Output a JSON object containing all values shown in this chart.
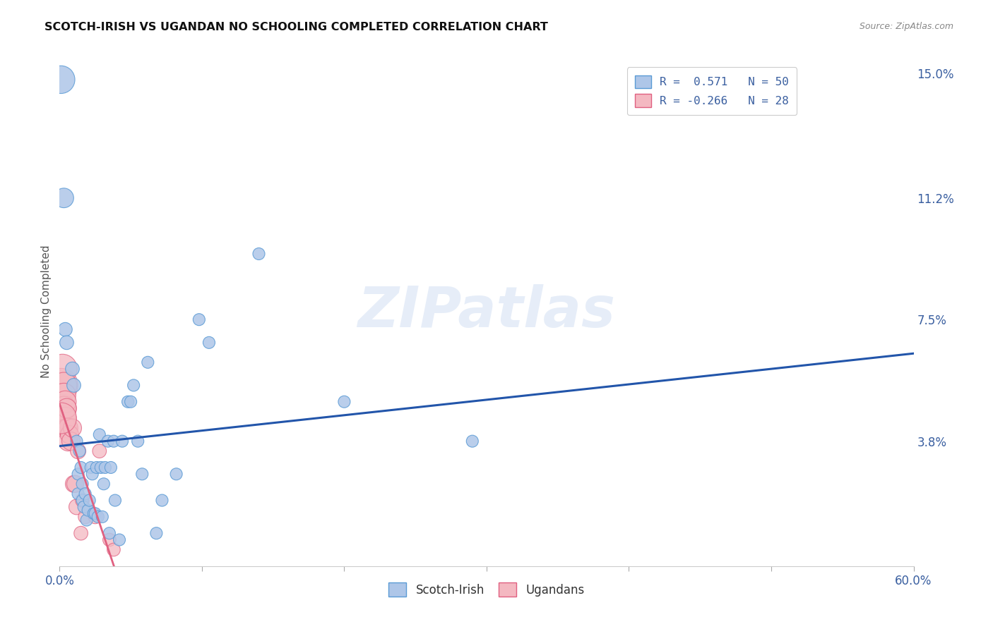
{
  "title": "SCOTCH-IRISH VS UGANDAN NO SCHOOLING COMPLETED CORRELATION CHART",
  "source": "Source: ZipAtlas.com",
  "ylabel": "No Schooling Completed",
  "xlim": [
    0.0,
    0.6
  ],
  "ylim": [
    0.0,
    0.155
  ],
  "xtick_positions": [
    0.0,
    0.1,
    0.2,
    0.3,
    0.4,
    0.5,
    0.6
  ],
  "xticklabels": [
    "0.0%",
    "",
    "",
    "",
    "",
    "",
    "60.0%"
  ],
  "ytick_positions": [
    0.0,
    0.038,
    0.075,
    0.112,
    0.15
  ],
  "ytick_labels": [
    "",
    "3.8%",
    "7.5%",
    "11.2%",
    "15.0%"
  ],
  "watermark": "ZIPatlas",
  "legend_entries": [
    {
      "label": "R =  0.571   N = 50",
      "color": "#aec6e8"
    },
    {
      "label": "R = -0.266   N = 28",
      "color": "#f4b8c1"
    }
  ],
  "blue_line_color": "#2255aa",
  "pink_line_color": "#e06080",
  "blue_scatter_color": "#aec6e8",
  "blue_edge_color": "#5b9bd5",
  "pink_scatter_color": "#f4b8c1",
  "pink_edge_color": "#e06080",
  "blue_R": 0.571,
  "blue_N": 50,
  "pink_R": -0.266,
  "pink_N": 28,
  "scotch_irish_points": [
    [
      0.001,
      0.148
    ],
    [
      0.003,
      0.112
    ],
    [
      0.004,
      0.072
    ],
    [
      0.005,
      0.068
    ],
    [
      0.009,
      0.06
    ],
    [
      0.01,
      0.055
    ],
    [
      0.012,
      0.038
    ],
    [
      0.013,
      0.028
    ],
    [
      0.013,
      0.022
    ],
    [
      0.014,
      0.035
    ],
    [
      0.015,
      0.03
    ],
    [
      0.016,
      0.025
    ],
    [
      0.016,
      0.02
    ],
    [
      0.017,
      0.018
    ],
    [
      0.018,
      0.022
    ],
    [
      0.019,
      0.014
    ],
    [
      0.02,
      0.017
    ],
    [
      0.021,
      0.02
    ],
    [
      0.022,
      0.03
    ],
    [
      0.023,
      0.028
    ],
    [
      0.024,
      0.016
    ],
    [
      0.025,
      0.016
    ],
    [
      0.026,
      0.03
    ],
    [
      0.027,
      0.015
    ],
    [
      0.028,
      0.04
    ],
    [
      0.029,
      0.03
    ],
    [
      0.03,
      0.015
    ],
    [
      0.031,
      0.025
    ],
    [
      0.032,
      0.03
    ],
    [
      0.034,
      0.038
    ],
    [
      0.035,
      0.01
    ],
    [
      0.036,
      0.03
    ],
    [
      0.038,
      0.038
    ],
    [
      0.039,
      0.02
    ],
    [
      0.042,
      0.008
    ],
    [
      0.044,
      0.038
    ],
    [
      0.048,
      0.05
    ],
    [
      0.05,
      0.05
    ],
    [
      0.052,
      0.055
    ],
    [
      0.055,
      0.038
    ],
    [
      0.058,
      0.028
    ],
    [
      0.062,
      0.062
    ],
    [
      0.068,
      0.01
    ],
    [
      0.072,
      0.02
    ],
    [
      0.082,
      0.028
    ],
    [
      0.098,
      0.075
    ],
    [
      0.105,
      0.068
    ],
    [
      0.14,
      0.095
    ],
    [
      0.2,
      0.05
    ],
    [
      0.29,
      0.038
    ]
  ],
  "ugandan_points": [
    [
      0.001,
      0.055
    ],
    [
      0.002,
      0.06
    ],
    [
      0.002,
      0.048
    ],
    [
      0.002,
      0.045
    ],
    [
      0.003,
      0.055
    ],
    [
      0.003,
      0.052
    ],
    [
      0.003,
      0.048
    ],
    [
      0.004,
      0.05
    ],
    [
      0.004,
      0.045
    ],
    [
      0.005,
      0.048
    ],
    [
      0.005,
      0.042
    ],
    [
      0.006,
      0.042
    ],
    [
      0.006,
      0.038
    ],
    [
      0.007,
      0.04
    ],
    [
      0.008,
      0.038
    ],
    [
      0.009,
      0.042
    ],
    [
      0.01,
      0.025
    ],
    [
      0.011,
      0.025
    ],
    [
      0.012,
      0.018
    ],
    [
      0.013,
      0.035
    ],
    [
      0.015,
      0.01
    ],
    [
      0.016,
      0.02
    ],
    [
      0.018,
      0.015
    ],
    [
      0.025,
      0.015
    ],
    [
      0.028,
      0.035
    ],
    [
      0.035,
      0.008
    ],
    [
      0.038,
      0.005
    ],
    [
      0.001,
      0.045
    ]
  ],
  "scotch_irish_sizes": [
    800,
    400,
    200,
    200,
    200,
    200,
    150,
    150,
    150,
    150,
    150,
    150,
    150,
    150,
    150,
    150,
    150,
    150,
    150,
    150,
    150,
    150,
    150,
    150,
    150,
    150,
    150,
    150,
    150,
    150,
    150,
    150,
    150,
    150,
    150,
    150,
    150,
    150,
    150,
    150,
    150,
    150,
    150,
    150,
    150,
    150,
    150,
    150,
    150,
    150
  ],
  "ugandan_sizes": [
    1200,
    900,
    800,
    700,
    700,
    600,
    600,
    500,
    500,
    400,
    400,
    400,
    400,
    350,
    350,
    350,
    300,
    300,
    250,
    250,
    200,
    200,
    200,
    200,
    200,
    180,
    180,
    1000
  ]
}
